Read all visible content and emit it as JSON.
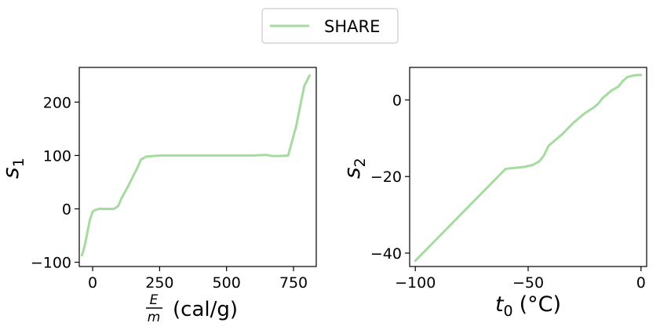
{
  "legend": {
    "entries": [
      "SHARE"
    ],
    "placement": "top-center"
  },
  "colors": {
    "series": "#a6dba0",
    "axes": "#000000",
    "background": "#ffffff",
    "legend_border": "#cccccc"
  },
  "chart_data": [
    {
      "type": "line",
      "panel": "left",
      "xlabel_fraction": {
        "numerator": "E",
        "denominator": "m"
      },
      "xlabel_unit": "(cal/g)",
      "ylabel": {
        "base": "s",
        "sub": "1"
      },
      "xlim": [
        -50,
        835
      ],
      "ylim": [
        -108,
        265
      ],
      "xticks": [
        0,
        250,
        500,
        750
      ],
      "yticks": [
        -100,
        0,
        100,
        200
      ],
      "grid": false,
      "series": [
        {
          "name": "SHARE",
          "x": [
            -40,
            -30,
            -20,
            -10,
            0,
            10,
            25,
            50,
            80,
            95,
            110,
            130,
            150,
            170,
            180,
            200,
            250,
            350,
            450,
            550,
            600,
            650,
            670,
            700,
            730,
            760,
            780,
            790,
            800,
            810
          ],
          "y": [
            -87,
            -70,
            -45,
            -20,
            -5,
            -2,
            0,
            0,
            0,
            5,
            22,
            40,
            60,
            80,
            92,
            98,
            100,
            100,
            100,
            100,
            100,
            101,
            99,
            99,
            100,
            155,
            205,
            230,
            240,
            250
          ]
        }
      ]
    },
    {
      "type": "line",
      "panel": "right",
      "xlabel": {
        "base": "t",
        "sub": "0",
        "unit": "(°C)"
      },
      "ylabel": {
        "base": "s",
        "sub": "2"
      },
      "xlim": [
        -102.5,
        2.5
      ],
      "ylim": [
        -43.5,
        8.5
      ],
      "xticks": [
        -100,
        -50,
        0
      ],
      "yticks": [
        -40,
        -20,
        0
      ],
      "grid": false,
      "series": [
        {
          "name": "SHARE",
          "x": [
            -100,
            -90,
            -80,
            -70,
            -60,
            -52,
            -48,
            -45,
            -43,
            -41,
            -39,
            -35,
            -30,
            -25,
            -21,
            -19,
            -17,
            -15,
            -13,
            -10,
            -8,
            -6,
            -4,
            -2,
            0
          ],
          "y": [
            -42,
            -36,
            -30,
            -24,
            -18,
            -17.5,
            -17,
            -16,
            -14.5,
            -12,
            -11,
            -9,
            -6,
            -3.5,
            -2,
            -1,
            0.5,
            1.5,
            2.5,
            3.5,
            5,
            6,
            6.3,
            6.5,
            6.5
          ]
        }
      ]
    }
  ]
}
